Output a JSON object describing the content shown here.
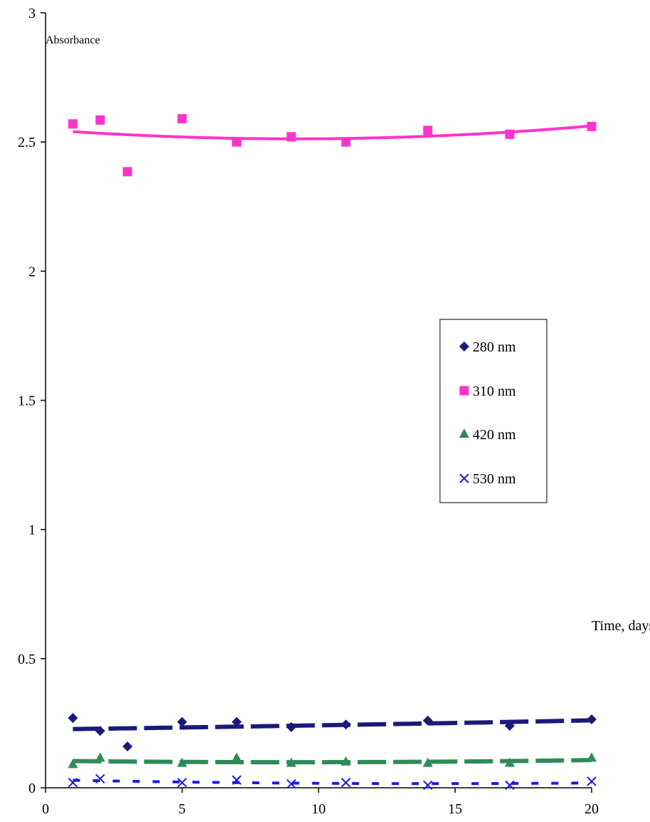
{
  "chart_data": {
    "type": "scatter",
    "ylabel": "Absorbance",
    "xlabel": "Time, days",
    "xlim": [
      0,
      20
    ],
    "ylim": [
      0,
      3
    ],
    "x_ticks": [
      "0",
      "5",
      "10",
      "15",
      "20"
    ],
    "y_ticks": [
      "0",
      "0.5",
      "1",
      "1.5",
      "2",
      "2.5",
      "3"
    ],
    "grid": false,
    "legend_position": "right-middle",
    "series": [
      {
        "name": "280 nm",
        "marker": "diamond",
        "color": "#1a1a7a",
        "trend": "dashed",
        "x": [
          1,
          2,
          3,
          5,
          7,
          9,
          11,
          14,
          17,
          20
        ],
        "y": [
          0.27,
          0.22,
          0.16,
          0.255,
          0.255,
          0.235,
          0.245,
          0.26,
          0.24,
          0.265
        ]
      },
      {
        "name": "310 nm",
        "marker": "square",
        "color": "#ff33cc",
        "trend": "solid",
        "x": [
          1,
          2,
          3,
          5,
          7,
          9,
          11,
          14,
          17,
          20
        ],
        "y": [
          2.57,
          2.585,
          2.385,
          2.59,
          2.5,
          2.52,
          2.5,
          2.545,
          2.53,
          2.56
        ]
      },
      {
        "name": "420 nm",
        "marker": "triangle",
        "color": "#2e8b57",
        "trend": "dashed",
        "x": [
          1,
          2,
          5,
          7,
          9,
          11,
          14,
          17,
          20
        ],
        "y": [
          0.09,
          0.115,
          0.095,
          0.115,
          0.095,
          0.1,
          0.095,
          0.095,
          0.115
        ]
      },
      {
        "name": "530 nm",
        "marker": "x",
        "color": "#1a1ae6",
        "trend": "dotted",
        "x": [
          1,
          2,
          5,
          7,
          9,
          11,
          14,
          17,
          20
        ],
        "y": [
          0.02,
          0.035,
          0.02,
          0.03,
          0.015,
          0.02,
          0.01,
          0.01,
          0.025
        ]
      }
    ]
  }
}
